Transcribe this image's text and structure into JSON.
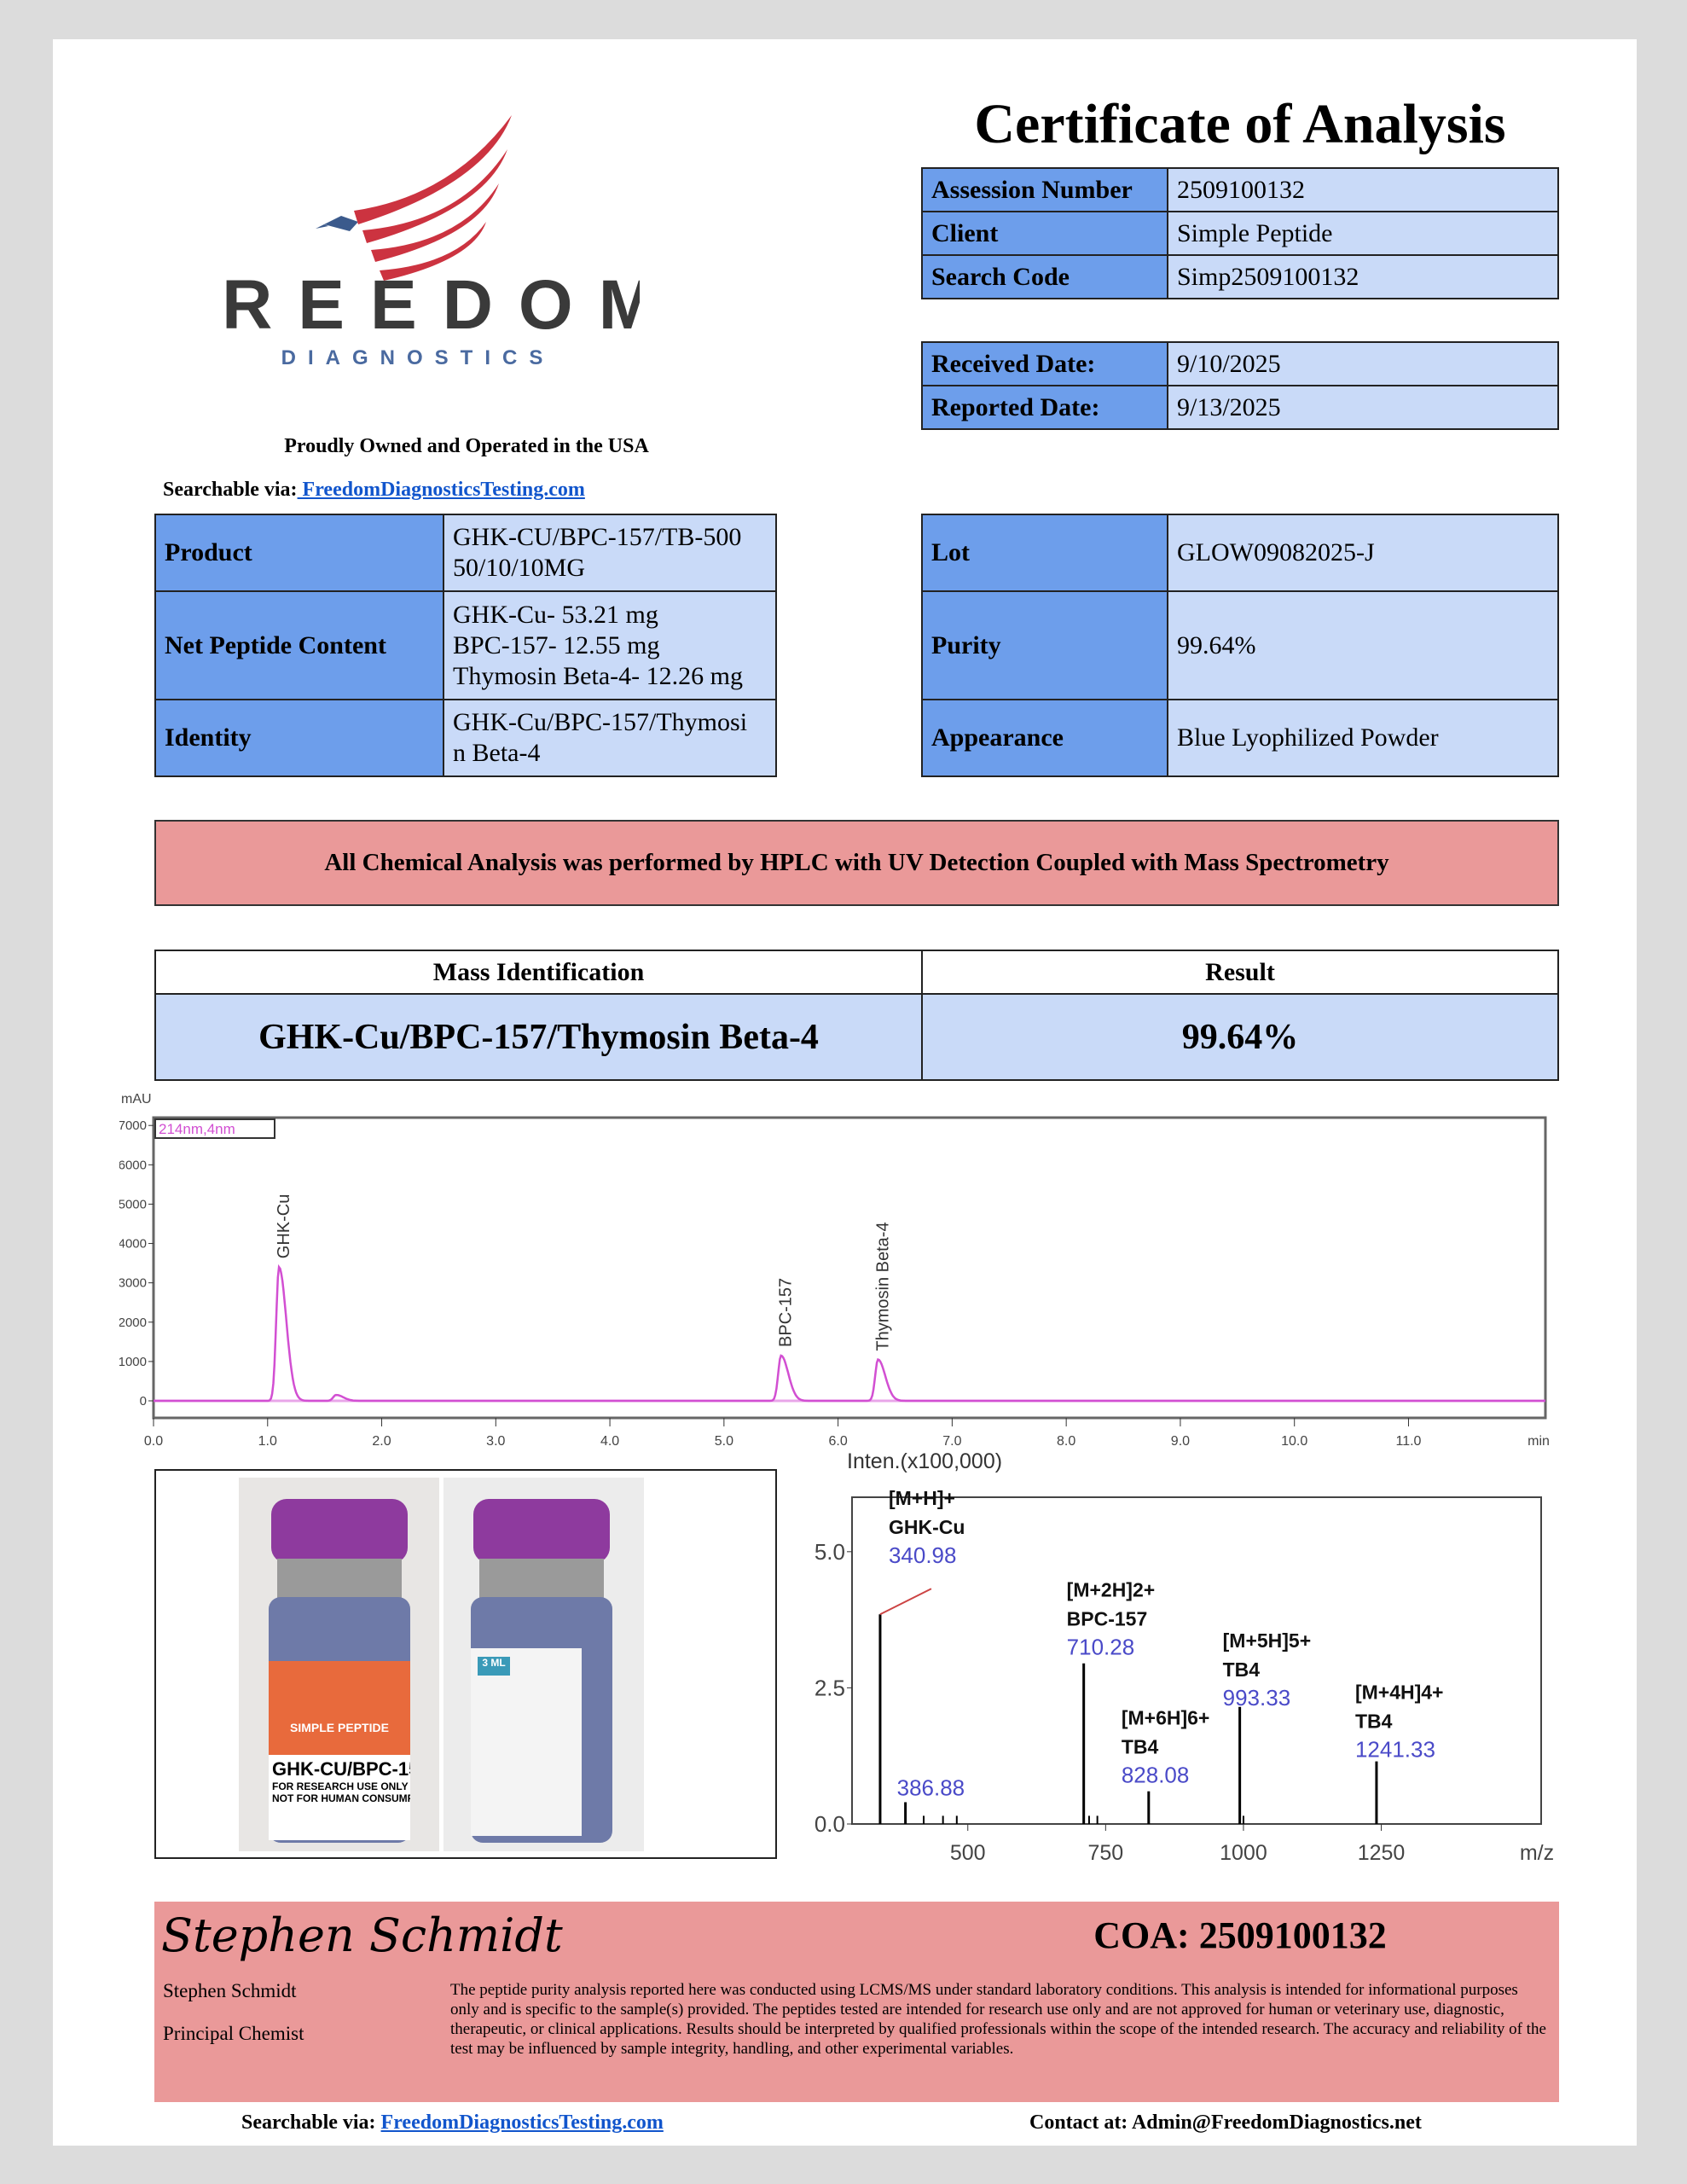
{
  "header": {
    "title": "Certificate of Analysis"
  },
  "logo": {
    "name": "FREEDOM",
    "sub": "DIAGNOSTICS",
    "tagline": "Proudly Owned and Operated in the USA"
  },
  "searchable": {
    "label": "Searchable via:",
    "link": " FreedomDiagnosticsTesting.com"
  },
  "id_table": [
    {
      "label": "Assession Number",
      "value": "2509100132"
    },
    {
      "label": "Client",
      "value": "Simple Peptide"
    },
    {
      "label": "Search Code",
      "value": "Simp2509100132"
    }
  ],
  "date_table": [
    {
      "label": "Received Date:",
      "value": "9/10/2025"
    },
    {
      "label": "Reported Date:",
      "value": "9/13/2025"
    }
  ],
  "product_table": [
    {
      "label": "Product",
      "value": [
        "GHK-CU/BPC-157/TB-500",
        "50/10/10MG"
      ]
    },
    {
      "label": "Net Peptide Content",
      "value": [
        "GHK-Cu- 53.21 mg",
        "BPC-157- 12.55 mg",
        "Thymosin Beta-4- 12.26 mg"
      ]
    },
    {
      "label": "Identity",
      "value": [
        "GHK-Cu/BPC-157/Thymosi",
        "n Beta-4"
      ]
    }
  ],
  "lot_table": [
    {
      "label": "Lot",
      "value": "GLOW09082025-J"
    },
    {
      "label": "Purity",
      "value": "99.64%"
    },
    {
      "label": "Appearance",
      "value": "Blue Lyophilized Powder"
    }
  ],
  "banner": "All Chemical Analysis was performed by HPLC with UV Detection Coupled with Mass Spectrometry",
  "mass_table": {
    "headers": [
      "Mass Identification",
      "Result"
    ],
    "row": [
      "GHK-Cu/BPC-157/Thymosin Beta-4",
      "99.64%"
    ]
  },
  "chart_data": [
    {
      "type": "line",
      "title": "",
      "ylabel": "mAU",
      "xlabel": "min",
      "legend": "214nm,4nm",
      "xlim": [
        0,
        12.2
      ],
      "ylim": [
        0,
        7200
      ],
      "xticks": [
        "0.0",
        "1.0",
        "2.0",
        "3.0",
        "4.0",
        "5.0",
        "6.0",
        "7.0",
        "8.0",
        "9.0",
        "10.0",
        "11.0"
      ],
      "yticks": [
        "0",
        "1000",
        "2000",
        "3000",
        "4000",
        "5000",
        "6000",
        "7000"
      ],
      "peaks": [
        {
          "name": "GHK-Cu",
          "x": 1.1,
          "y": 3400
        },
        {
          "name": "",
          "x": 1.6,
          "y": 150
        },
        {
          "name": "BPC-157",
          "x": 5.5,
          "y": 1150
        },
        {
          "name": "Thymosin Beta-4",
          "x": 6.35,
          "y": 1050
        }
      ],
      "color": "#d24fd2"
    },
    {
      "type": "bar",
      "title": "",
      "ylabel": "Inten.(x100,000)",
      "xlabel": "m/z",
      "xlim": [
        290,
        1540
      ],
      "ylim": [
        0,
        6.0
      ],
      "xticks": [
        "500",
        "750",
        "1000",
        "1250"
      ],
      "yticks": [
        "0.0",
        "2.5",
        "5.0"
      ],
      "peaks": [
        {
          "mz": "340.98",
          "x": 340.98,
          "y": 3.85,
          "ion": "[M+H]+",
          "name": "GHK-Cu"
        },
        {
          "mz": "386.88",
          "x": 386.88,
          "y": 0.4,
          "ion": "",
          "name": ""
        },
        {
          "mz": "710.28",
          "x": 710.28,
          "y": 2.95,
          "ion": "[M+2H]2+",
          "name": "BPC-157"
        },
        {
          "mz": "828.08",
          "x": 828.08,
          "y": 0.6,
          "ion": "[M+6H]6+",
          "name": "TB4"
        },
        {
          "mz": "993.33",
          "x": 993.33,
          "y": 2.15,
          "ion": "[M+5H]5+",
          "name": "TB4"
        },
        {
          "mz": "1241.33",
          "x": 1241.33,
          "y": 1.15,
          "ion": "[M+4H]4+",
          "name": "TB4"
        }
      ]
    }
  ],
  "vials": {
    "label1": "GHK-CU/BPC-15",
    "brand": "SIMPLE PEPTIDE",
    "warn1": "FOR RESEARCH USE ONLY",
    "warn2": "NOT FOR HUMAN CONSUMPTION",
    "badge": "3 ML"
  },
  "footer": {
    "signature": "Stephen Schmidt",
    "coa": "COA: 2509100132",
    "name": "Stephen Schmidt",
    "role": "Principal Chemist",
    "disclaimer": "The peptide purity analysis reported here was conducted using LCMS/MS under standard laboratory conditions. This analysis is intended for informational purposes only and is specific to the sample(s) provided. The peptides tested are intended for research use only and are not approved for human or veterinary use, diagnostic, therapeutic, or clinical applications. Results should be interpreted by qualified professionals within the scope of the intended research. The accuracy and reliability of the test may be influenced by sample integrity, handling, and other experimental variables."
  },
  "bottom": {
    "search_label": "Searchable via:",
    "search_link": "FreedomDiagnosticsTesting.com",
    "contact": "Contact at: Admin@FreedomDiagnostics.net"
  }
}
